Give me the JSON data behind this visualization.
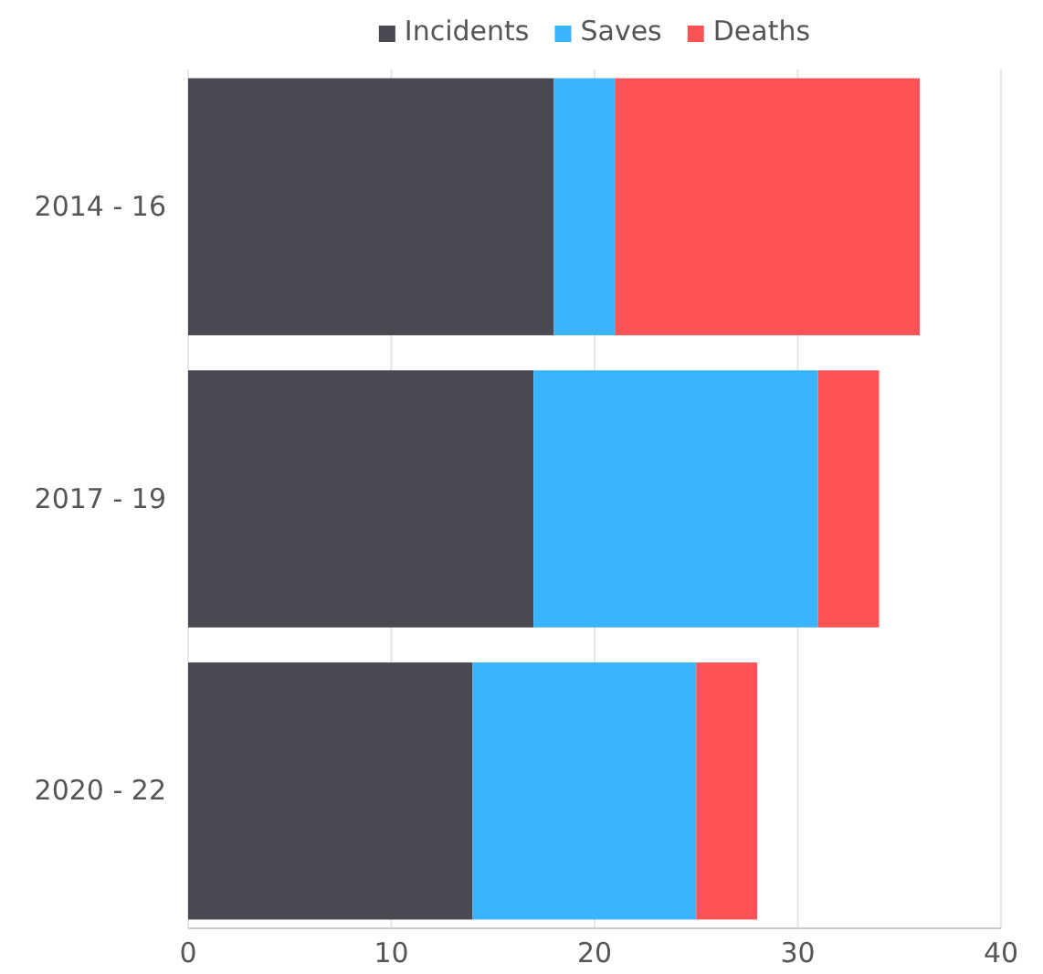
{
  "chart_data": {
    "type": "bar",
    "orientation": "horizontal",
    "stacked": true,
    "categories": [
      "2014 - 16",
      "2017 - 19",
      "2020 - 22"
    ],
    "series": [
      {
        "name": "Incidents",
        "color": "#4a4952",
        "values": [
          18,
          17,
          14
        ]
      },
      {
        "name": "Saves",
        "color": "#3ab4fc",
        "values": [
          3,
          14,
          11
        ]
      },
      {
        "name": "Deaths",
        "color": "#fc5456",
        "values": [
          15,
          3,
          3
        ]
      }
    ],
    "xlim": [
      0,
      40
    ],
    "xticks": [
      0,
      10,
      20,
      30,
      40
    ],
    "grid": "x",
    "legend": "top"
  }
}
